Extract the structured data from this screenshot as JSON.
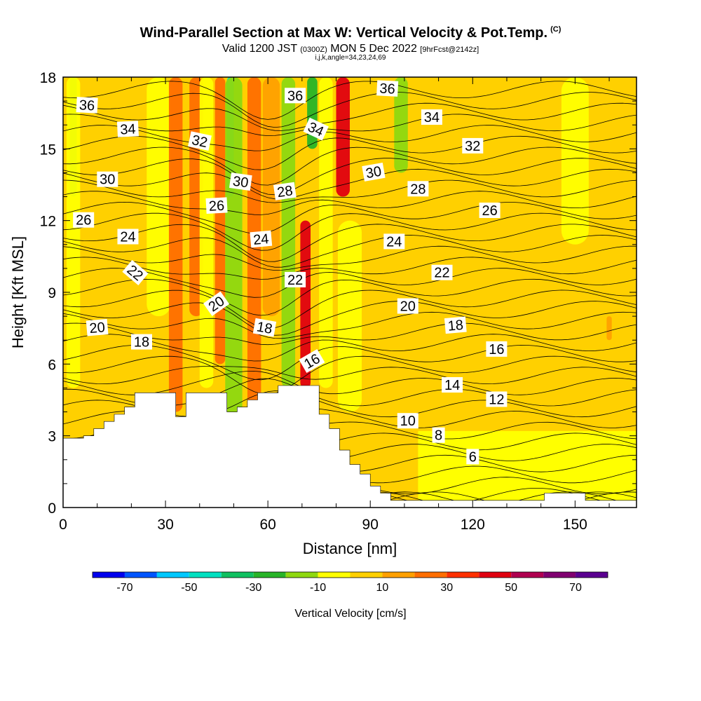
{
  "chart_data": {
    "type": "heatmap",
    "title": "Wind-Parallel Section at Max W: Vertical Velocity & Pot.Temp.",
    "title_mark": "(C)",
    "subtitle": {
      "valid": "Valid 1200 JST",
      "utc": "(0300Z)",
      "date": "MON 5 Dec 2022",
      "fcst": "[9hrFcst@2142z]"
    },
    "index_line": "i,j,k,angle=34,23,24,69",
    "xlabel": "Distance [nm]",
    "ylabel": "Height [Kft MSL]",
    "xlim": [
      0,
      168
    ],
    "ylim": [
      0,
      18
    ],
    "xticks": [
      0,
      30,
      60,
      90,
      120,
      150
    ],
    "yticks": [
      0,
      3,
      6,
      9,
      12,
      15,
      18
    ],
    "colorbar": {
      "title": "Vertical Velocity [cm/s]",
      "bounds": [
        -80,
        80
      ],
      "step": 10,
      "tick_values": [
        -70,
        -50,
        -30,
        -10,
        10,
        30,
        50,
        70
      ],
      "colors": [
        "#0000ee",
        "#0055ff",
        "#00c8ff",
        "#00e0c0",
        "#10c060",
        "#28b428",
        "#8ed810",
        "#ffff00",
        "#ffd000",
        "#ffa000",
        "#ff6e00",
        "#ff3000",
        "#e00010",
        "#b00050",
        "#800070",
        "#5a0090"
      ]
    },
    "theta_contour_labels": [
      {
        "value": "36",
        "x": 7,
        "y": 16.8,
        "angle": 3
      },
      {
        "value": "34",
        "x": 19,
        "y": 15.8,
        "angle": -3
      },
      {
        "value": "32",
        "x": 40,
        "y": 15.3,
        "angle": 12
      },
      {
        "value": "30",
        "x": 13,
        "y": 13.7,
        "angle": 0
      },
      {
        "value": "30",
        "x": 52,
        "y": 13.6,
        "angle": 8
      },
      {
        "value": "26",
        "x": 6,
        "y": 12.0,
        "angle": 0
      },
      {
        "value": "26",
        "x": 45,
        "y": 12.6,
        "angle": -3
      },
      {
        "value": "28",
        "x": 65,
        "y": 13.2,
        "angle": -8
      },
      {
        "value": "24",
        "x": 19,
        "y": 11.3,
        "angle": 0
      },
      {
        "value": "24",
        "x": 58,
        "y": 11.2,
        "angle": -5
      },
      {
        "value": "22",
        "x": 21,
        "y": 9.8,
        "angle": 40
      },
      {
        "value": "22",
        "x": 68,
        "y": 9.5,
        "angle": 0
      },
      {
        "value": "20",
        "x": 10,
        "y": 7.5,
        "angle": -5
      },
      {
        "value": "20",
        "x": 45,
        "y": 8.5,
        "angle": -35
      },
      {
        "value": "18",
        "x": 23,
        "y": 6.9,
        "angle": 0
      },
      {
        "value": "18",
        "x": 59,
        "y": 7.5,
        "angle": 10
      },
      {
        "value": "16",
        "x": 73,
        "y": 6.1,
        "angle": -30
      },
      {
        "value": "36",
        "x": 68,
        "y": 17.2,
        "angle": 0
      },
      {
        "value": "34",
        "x": 74,
        "y": 15.8,
        "angle": 25
      },
      {
        "value": "30",
        "x": 91,
        "y": 14.0,
        "angle": -10
      },
      {
        "value": "36",
        "x": 95,
        "y": 17.5,
        "angle": 3
      },
      {
        "value": "34",
        "x": 108,
        "y": 16.3,
        "angle": 0
      },
      {
        "value": "32",
        "x": 120,
        "y": 15.1,
        "angle": 0
      },
      {
        "value": "28",
        "x": 104,
        "y": 13.3,
        "angle": 0
      },
      {
        "value": "26",
        "x": 125,
        "y": 12.4,
        "angle": 0
      },
      {
        "value": "24",
        "x": 97,
        "y": 11.1,
        "angle": 0
      },
      {
        "value": "22",
        "x": 111,
        "y": 9.8,
        "angle": 0
      },
      {
        "value": "20",
        "x": 101,
        "y": 8.4,
        "angle": 0
      },
      {
        "value": "18",
        "x": 115,
        "y": 7.6,
        "angle": -5
      },
      {
        "value": "16",
        "x": 127,
        "y": 6.6,
        "angle": 0
      },
      {
        "value": "14",
        "x": 114,
        "y": 5.1,
        "angle": 0
      },
      {
        "value": "12",
        "x": 127,
        "y": 4.5,
        "angle": 0
      },
      {
        "value": "10",
        "x": 101,
        "y": 3.6,
        "angle": 0
      },
      {
        "value": "8",
        "x": 110,
        "y": 3.0,
        "angle": 0
      },
      {
        "value": "6",
        "x": 120,
        "y": 2.1,
        "angle": 0
      }
    ],
    "velocity_bands": [
      {
        "x": 3,
        "y0": 13,
        "y1": 18,
        "w": 2,
        "value": -35
      },
      {
        "x": 3,
        "y0": 5,
        "y1": 18,
        "w": 4,
        "value": -10
      },
      {
        "x": 28,
        "y0": 8,
        "y1": 18,
        "w": 7,
        "value": -5
      },
      {
        "x": 33,
        "y0": 4,
        "y1": 18,
        "w": 4,
        "value": 25
      },
      {
        "x": 39,
        "y0": 8,
        "y1": 18,
        "w": 4,
        "value": 20
      },
      {
        "x": 42,
        "y0": 5,
        "y1": 18,
        "w": 4,
        "value": -10
      },
      {
        "x": 46,
        "y0": 6,
        "y1": 18,
        "w": 3,
        "value": 25
      },
      {
        "x": 49,
        "y0": 13,
        "y1": 18,
        "w": 2,
        "value": -45
      },
      {
        "x": 50,
        "y0": 3,
        "y1": 18,
        "w": 5,
        "value": -15
      },
      {
        "x": 56,
        "y0": 4,
        "y1": 18,
        "w": 4,
        "value": 20
      },
      {
        "x": 61,
        "y0": 8,
        "y1": 18,
        "w": 5,
        "value": 15
      },
      {
        "x": 66,
        "y0": 5,
        "y1": 18,
        "w": 4,
        "value": -15
      },
      {
        "x": 71,
        "y0": 5,
        "y1": 12,
        "w": 3,
        "value": 40
      },
      {
        "x": 73,
        "y0": 15,
        "y1": 18,
        "w": 3,
        "value": -30
      },
      {
        "x": 77,
        "y0": 5,
        "y1": 18,
        "w": 4,
        "value": -10
      },
      {
        "x": 82,
        "y0": 13,
        "y1": 18,
        "w": 4,
        "value": 45
      },
      {
        "x": 84,
        "y0": 4,
        "y1": 12,
        "w": 7,
        "value": -5
      },
      {
        "x": 99,
        "y0": 14,
        "y1": 18,
        "w": 4,
        "value": -15
      },
      {
        "x": 150,
        "y0": 11,
        "y1": 18,
        "w": 8,
        "value": -10
      },
      {
        "x": 160,
        "y0": 7,
        "y1": 8,
        "w": 1.5,
        "value": 15
      }
    ],
    "terrain_profile": {
      "x": [
        0,
        3,
        6,
        9,
        12,
        15,
        18,
        21,
        27,
        30,
        33,
        36,
        39,
        45,
        48,
        51,
        54,
        57,
        60,
        63,
        66,
        72,
        75,
        78,
        81,
        84,
        87,
        90,
        93,
        96,
        99,
        102,
        105,
        138,
        141,
        150,
        153,
        168
      ],
      "height": [
        2.9,
        2.9,
        3.0,
        3.3,
        3.6,
        3.9,
        4.2,
        4.8,
        4.8,
        4.8,
        3.8,
        4.8,
        4.8,
        4.8,
        4.0,
        4.2,
        4.5,
        4.8,
        4.8,
        5.1,
        5.1,
        5.1,
        3.9,
        3.3,
        2.4,
        1.8,
        1.4,
        0.9,
        0.6,
        0.3,
        0.3,
        0.3,
        0.3,
        0.3,
        0.6,
        0.6,
        0.3,
        0.3
      ]
    }
  }
}
